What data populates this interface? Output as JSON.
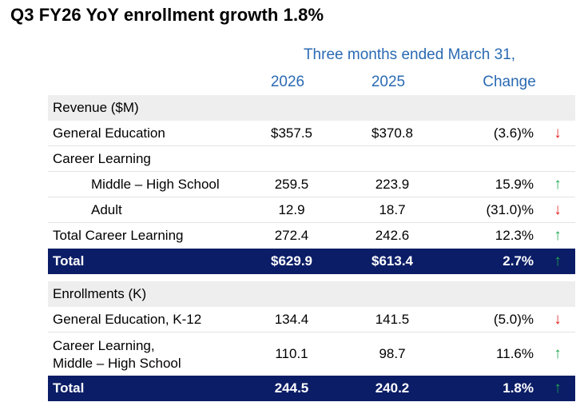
{
  "title": "Q3 FY26 YoY enrollment growth 1.8%",
  "period_header": "Three months ended March 31,",
  "columns": {
    "y2026": "2026",
    "y2025": "2025",
    "change": "Change"
  },
  "colors": {
    "header_blue": "#2a6ab3",
    "total_navy": "#0b1d66",
    "section_gray": "#eeeeee",
    "down_red": "#e02020",
    "up_green": "#1fa84f"
  },
  "revenue": {
    "section_label": "Revenue ($M)",
    "general_education": {
      "label": "General Education",
      "y2026": "$357.5",
      "y2025": "$370.8",
      "change": "(3.6)%",
      "arrow": "↓"
    },
    "career_learning": {
      "label": "Career Learning"
    },
    "middle_high": {
      "label": "Middle – High School",
      "y2026": "259.5",
      "y2025": "223.9",
      "change": "15.9%",
      "arrow": "↑"
    },
    "adult": {
      "label": "Adult",
      "y2026": "12.9",
      "y2025": "18.7",
      "change": "(31.0)%",
      "arrow": "↓"
    },
    "total_career": {
      "label": "Total Career Learning",
      "y2026": "272.4",
      "y2025": "242.6",
      "change": "12.3%",
      "arrow": "↑"
    },
    "total": {
      "label": "Total",
      "y2026": "$629.9",
      "y2025": "$613.4",
      "change": "2.7%",
      "arrow": "↑"
    }
  },
  "enrollments": {
    "section_label": "Enrollments (K)",
    "general_education": {
      "label": "General Education, K-12",
      "y2026": "134.4",
      "y2025": "141.5",
      "change": "(5.0)%",
      "arrow": "↓"
    },
    "career_learning": {
      "label_line1": "Career Learning,",
      "label_line2": "Middle – High School",
      "y2026": "110.1",
      "y2025": "98.7",
      "change": "11.6%",
      "arrow": "↑"
    },
    "total": {
      "label": "Total",
      "y2026": "244.5",
      "y2025": "240.2",
      "change": "1.8%",
      "arrow": "↑"
    }
  }
}
